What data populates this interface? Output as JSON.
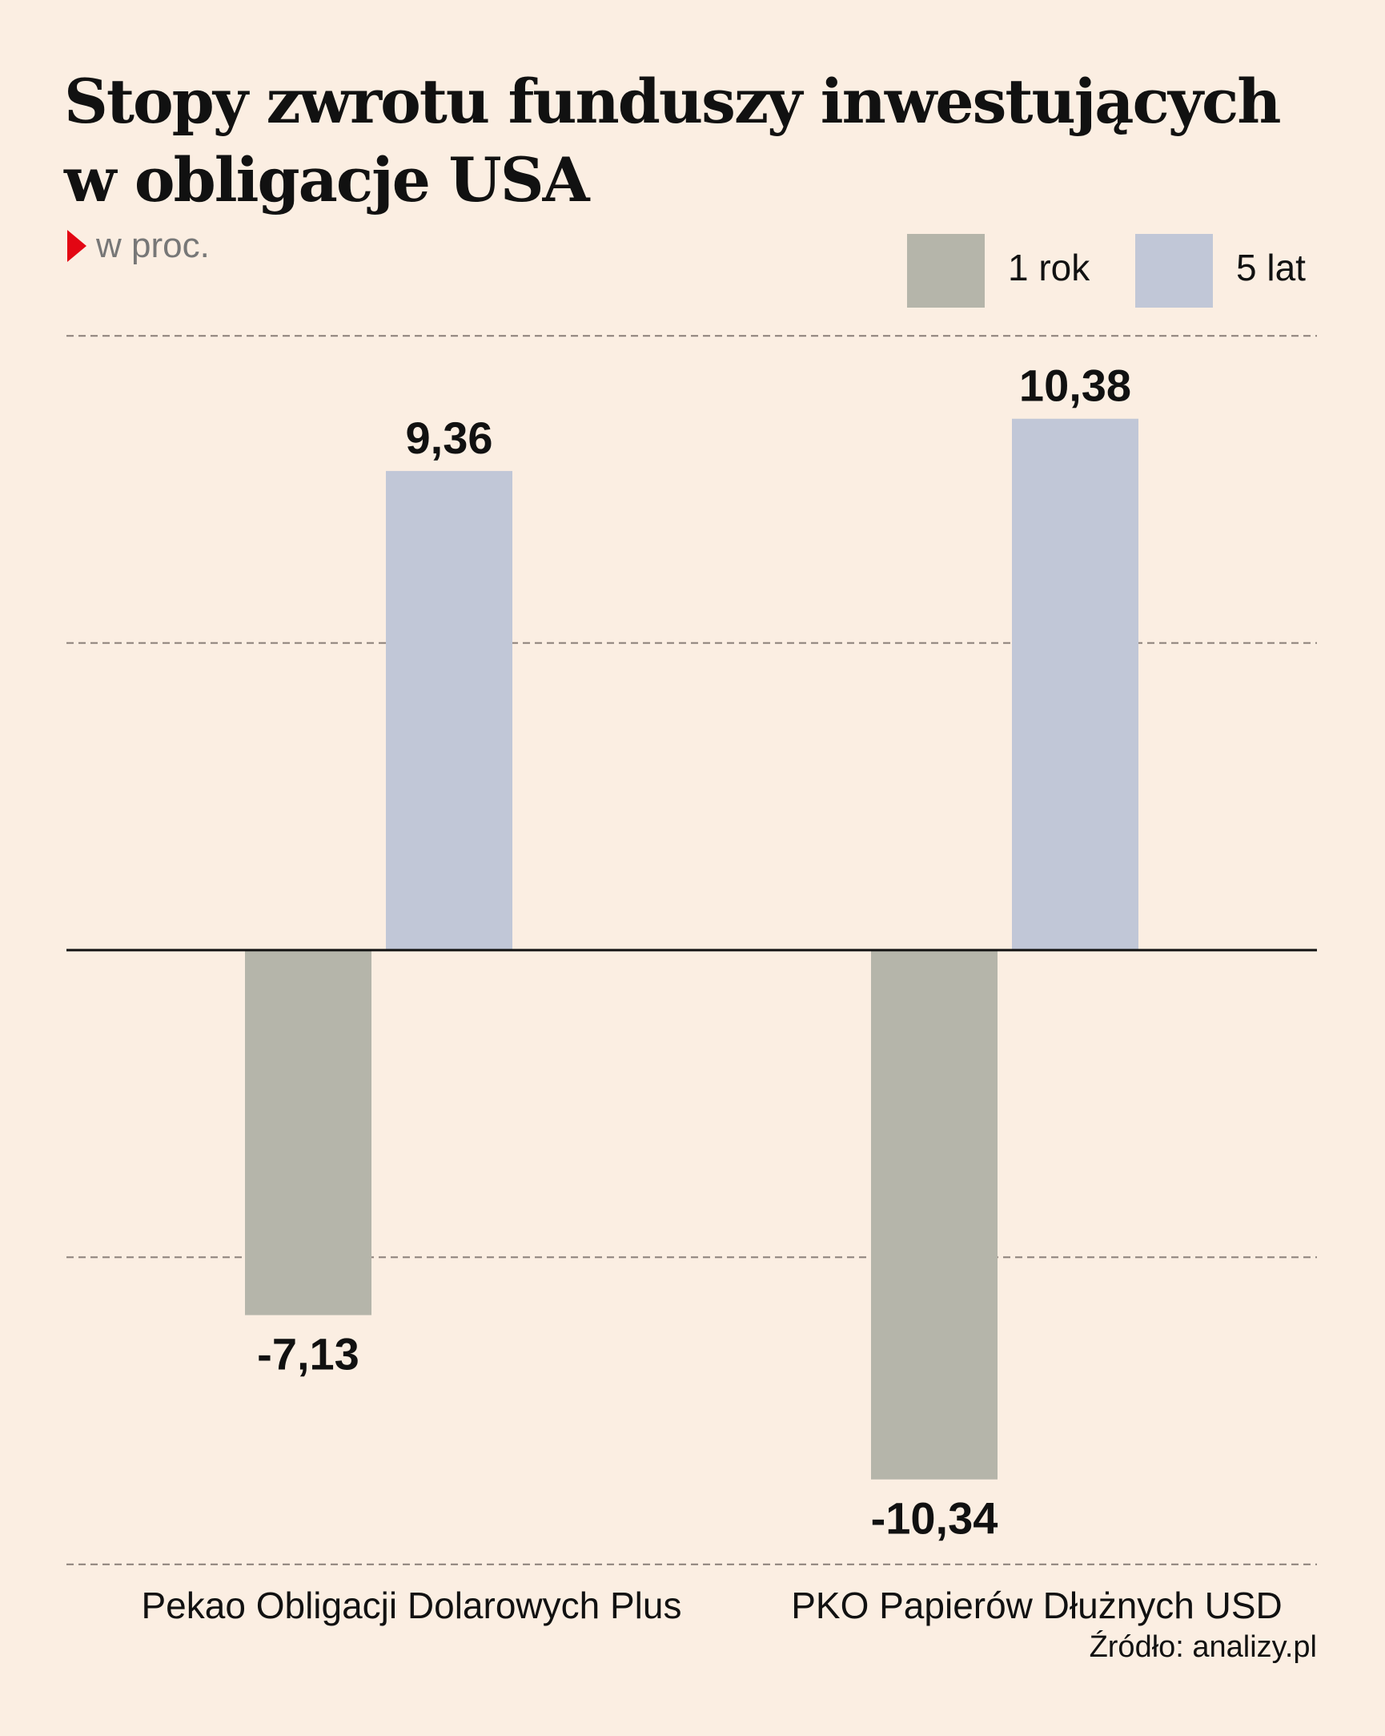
{
  "title_line1": "Stopy zwrotu funduszy inwestujących",
  "title_line2": "w obligacje USA",
  "unit": "w proc.",
  "source": "Źródło: analizy.pl",
  "colors": {
    "1 rok": "#b5b5aa",
    "5 lat": "#c1c7d7",
    "accent": "#e30613",
    "background": "#fbeee2"
  },
  "chart_data": {
    "type": "bar",
    "title": "Stopy zwrotu funduszy inwestujących w obligacje USA",
    "ylabel": "w proc.",
    "categories": [
      "Pekao Obligacji Dolarowych Plus",
      "PKO Papierów Dłużnych USD"
    ],
    "series": [
      {
        "name": "1 rok",
        "values": [
          -7.13,
          -10.34
        ],
        "labels": [
          "-7,13",
          "-10,34"
        ]
      },
      {
        "name": "5 lat",
        "values": [
          9.36,
          10.38
        ],
        "labels": [
          "9,36",
          "10,38"
        ]
      }
    ],
    "ylim": [
      -12,
      12
    ],
    "gridlines": [
      -12,
      -6,
      6,
      12
    ],
    "grid": true,
    "legend": "top-right"
  }
}
